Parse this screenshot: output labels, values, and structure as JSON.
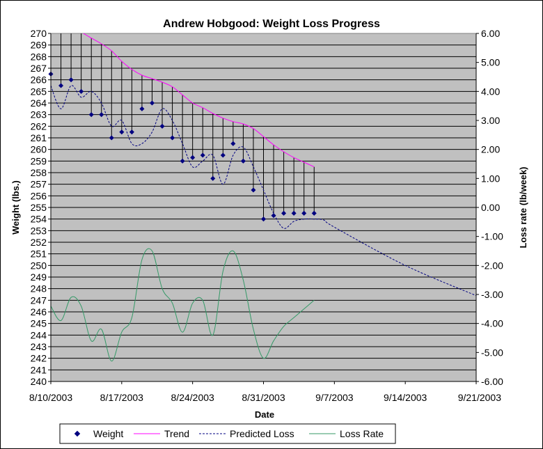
{
  "chart_data": {
    "type": "line",
    "title": "Andrew Hobgood: Weight Loss Progress",
    "xlabel": "Date",
    "ylabel": "Weight (lbs.)",
    "y2label": "Loss rate (lb/week)",
    "x_ticks": [
      "8/10/2003",
      "8/17/2003",
      "8/24/2003",
      "8/31/2003",
      "9/7/2003",
      "9/14/2003",
      "9/21/2003"
    ],
    "xlim": [
      "8/10/2003",
      "9/21/2003"
    ],
    "ylim": [
      240,
      270
    ],
    "y_ticks": [
      "240",
      "241",
      "242",
      "243",
      "244",
      "245",
      "246",
      "247",
      "248",
      "249",
      "250",
      "251",
      "252",
      "253",
      "254",
      "255",
      "256",
      "257",
      "258",
      "259",
      "260",
      "261",
      "262",
      "263",
      "264",
      "265",
      "266",
      "267",
      "268",
      "269",
      "270"
    ],
    "y2lim": [
      -6,
      6
    ],
    "y2_ticks": [
      "-6.00",
      "-5.00",
      "-4.00",
      "-3.00",
      "-2.00",
      "-1.00",
      "0.00",
      "1.00",
      "2.00",
      "3.00",
      "4.00",
      "5.00",
      "6.00"
    ],
    "grid": true,
    "legend_position": "bottom",
    "colors": {
      "plot_background": "#c0c0c0",
      "weight": "#000080",
      "trend": "#ff00ff",
      "predicted": "#000080",
      "loss_rate": "#339966",
      "drop_lines": "#000000"
    },
    "dates": [
      "8/10/2003",
      "8/11/2003",
      "8/12/2003",
      "8/13/2003",
      "8/14/2003",
      "8/15/2003",
      "8/16/2003",
      "8/17/2003",
      "8/18/2003",
      "8/19/2003",
      "8/20/2003",
      "8/21/2003",
      "8/22/2003",
      "8/23/2003",
      "8/24/2003",
      "8/25/2003",
      "8/26/2003",
      "8/27/2003",
      "8/28/2003",
      "8/29/2003",
      "8/30/2003",
      "8/31/2003",
      "9/1/2003",
      "9/2/2003",
      "9/3/2003",
      "9/4/2003",
      "9/5/2003"
    ],
    "series": [
      {
        "name": "Weight",
        "axis": "left",
        "style": "markers",
        "values": [
          266.5,
          265.5,
          266.0,
          265.0,
          263.0,
          263.0,
          261.0,
          261.5,
          261.5,
          263.5,
          264.0,
          262.0,
          261.0,
          259.0,
          259.3,
          259.5,
          257.5,
          259.5,
          260.5,
          259.0,
          256.5,
          254.0,
          254.3,
          254.5,
          254.5,
          254.5,
          254.5
        ]
      },
      {
        "name": "Trend",
        "axis": "left",
        "style": "solid",
        "values": [
          271.5,
          271.0,
          270.5,
          270.1,
          269.6,
          269.1,
          268.5,
          267.6,
          266.9,
          266.4,
          266.1,
          265.8,
          265.4,
          264.7,
          264.0,
          263.6,
          263.1,
          262.7,
          262.4,
          262.2,
          261.8,
          261.1,
          260.4,
          259.8,
          259.3,
          258.9,
          258.5
        ]
      },
      {
        "name": "Predicted Loss",
        "axis": "left",
        "style": "dashed",
        "x": [
          "8/10/2003",
          "8/11/2003",
          "8/12/2003",
          "8/13/2003",
          "8/14/2003",
          "8/15/2003",
          "8/16/2003",
          "8/17/2003",
          "8/18/2003",
          "8/19/2003",
          "8/20/2003",
          "8/21/2003",
          "8/22/2003",
          "8/23/2003",
          "8/24/2003",
          "8/25/2003",
          "8/26/2003",
          "8/27/2003",
          "8/28/2003",
          "8/29/2003",
          "8/30/2003",
          "8/31/2003",
          "9/1/2003",
          "9/2/2003",
          "9/3/2003",
          "9/4/2003",
          "9/5/2003",
          "9/6/2003",
          "9/7/2003",
          "9/14/2003",
          "9/21/2003"
        ],
        "values": [
          265.5,
          263.5,
          265.5,
          264.5,
          265.0,
          264.0,
          262.0,
          262.5,
          260.5,
          260.5,
          261.5,
          263.5,
          262.5,
          260.5,
          258.5,
          259.0,
          259.5,
          257.0,
          259.5,
          260.2,
          258.5,
          256.5,
          254.5,
          253.2,
          253.8,
          254.0,
          254.0,
          253.9,
          253.3,
          250.0,
          247.4
        ]
      },
      {
        "name": "Loss Rate",
        "axis": "right",
        "style": "solid",
        "values": [
          -3.4,
          -3.9,
          -3.1,
          -3.4,
          -4.6,
          -4.2,
          -5.3,
          -4.3,
          -3.8,
          -1.8,
          -1.5,
          -2.8,
          -3.3,
          -4.3,
          -3.3,
          -3.2,
          -4.4,
          -2.2,
          -1.5,
          -2.5,
          -4.2,
          -5.2,
          -4.6,
          -4.1,
          -3.8,
          -3.5,
          -3.2
        ]
      }
    ]
  }
}
